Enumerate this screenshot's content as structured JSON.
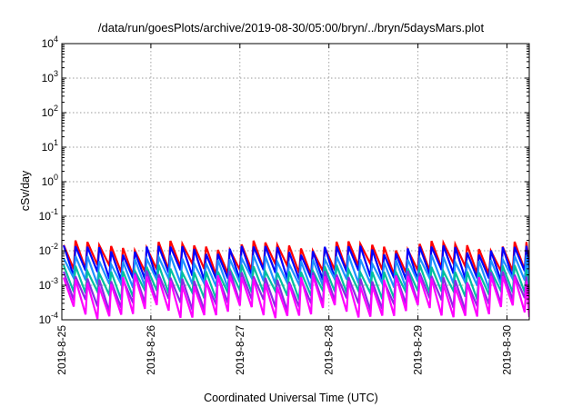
{
  "chart_data": {
    "type": "line",
    "title": "/data/run/goesPlots/archive/2019-08-30/05:00/bryn/../bryn/5daysMars.plot",
    "xlabel": "Coordinated Universal Time (UTC)",
    "ylabel": "cSv/day",
    "yscale": "log",
    "ylim_exponents": [
      -4,
      4
    ],
    "y_tick_base": "10",
    "y_ticks": [
      {
        "exp": -4,
        "label": "-4"
      },
      {
        "exp": -3,
        "label": "-3"
      },
      {
        "exp": -2,
        "label": "-2"
      },
      {
        "exp": -1,
        "label": "-1"
      },
      {
        "exp": 0,
        "label": "0"
      },
      {
        "exp": 1,
        "label": "1"
      },
      {
        "exp": 2,
        "label": "2"
      },
      {
        "exp": 3,
        "label": "3"
      },
      {
        "exp": 4,
        "label": "4"
      }
    ],
    "x_tick_labels": [
      "2019-8-25",
      "2019-8-26",
      "2019-8-27",
      "2019-8-28",
      "2019-8-29",
      "2019-8-30"
    ],
    "x_range_days": [
      0,
      5.25
    ],
    "grid": true,
    "legend": "none",
    "pattern": {
      "period_days": 0.1333,
      "start_day": 0.02,
      "end_day": 5.25,
      "note_values_are_log10_peak_and_trough": true
    },
    "series": [
      {
        "color": "#ff0000",
        "peak_log10": -1.85,
        "trough_log10": -2.55,
        "daily_wave": 0.12
      },
      {
        "color": "#0000ff",
        "peak_log10": -1.95,
        "trough_log10": -2.75,
        "daily_wave": 0.12
      },
      {
        "color": "#1e90ff",
        "peak_log10": -2.25,
        "trough_log10": -2.95,
        "daily_wave": 0.1
      },
      {
        "color": "#00c0a0",
        "peak_log10": -2.55,
        "trough_log10": -3.25,
        "daily_wave": 0.1
      },
      {
        "color": "#8a2be2",
        "peak_log10": -2.75,
        "trough_log10": -3.55,
        "daily_wave": 0.14
      },
      {
        "color": "#ff00ff",
        "peak_log10": -2.85,
        "trough_log10": -3.8,
        "daily_wave": 0.16
      }
    ]
  }
}
